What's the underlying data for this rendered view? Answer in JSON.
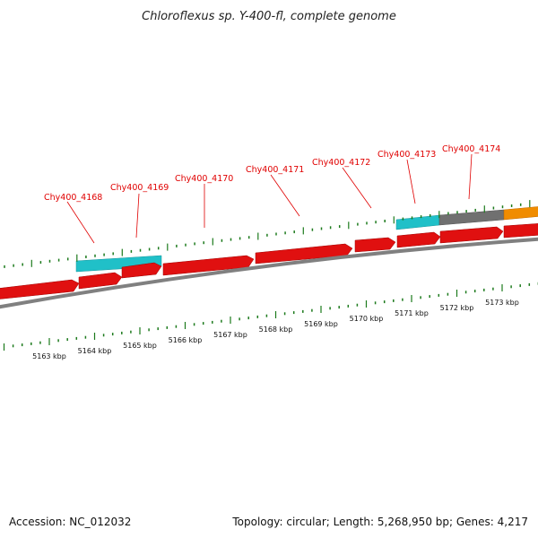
{
  "title": "Chloroflexus sp. Y-400-fl, complete genome",
  "footer": {
    "accession": "Accession: NC_012032",
    "summary": "Topology: circular; Length: 5,268,950 bp; Genes: 4,217"
  },
  "colors": {
    "cds": "#e01010",
    "trna": "#20c0c8",
    "gray_feature": "#707070",
    "orange_feature": "#f08c00",
    "backbone": "#808080",
    "tick": "#1c7a1c",
    "label": "#e00000"
  },
  "axis": {
    "unit": "kbp",
    "tick_labels": [
      "5163 kbp",
      "5164 kbp",
      "5165 kbp",
      "5166 kbp",
      "5167 kbp",
      "5168 kbp",
      "5169 kbp",
      "5170 kbp",
      "5171 kbp",
      "5172 kbp",
      "5173 kbp"
    ]
  },
  "gene_labels": [
    "Chy400_4168",
    "Chy400_4169",
    "Chy400_4170",
    "Chy400_4171",
    "Chy400_4172",
    "Chy400_4173",
    "Chy400_4174"
  ]
}
